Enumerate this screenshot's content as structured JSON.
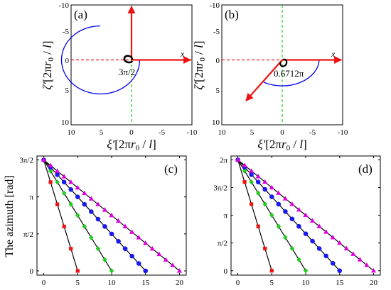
{
  "colors": {
    "red": "#ee1111",
    "green": "#22cc22",
    "blue": "#1a1aee",
    "magenta": "#dd00dd",
    "black": "#000000",
    "arc_blue": "#0000ee"
  },
  "chart_data": [
    {
      "type": "diagram",
      "panel": "(a)",
      "xlim": [
        10,
        -10
      ],
      "ylim": [
        -10,
        10
      ],
      "xticks": [
        "10",
        "5",
        "0",
        "-5",
        "-10"
      ],
      "yticks": [
        "-10",
        "-5",
        "0",
        "5",
        "10"
      ],
      "xlabel": "ξ′[2πr0/l]",
      "ylabel": "ζ′[2πr0/l]",
      "x_axis_label": "x",
      "angle_label": "3π/2",
      "arrows": [
        {
          "name": "x-axis-arrow",
          "color": "red",
          "from": [
            0,
            0
          ],
          "to": [
            -9,
            0
          ]
        },
        {
          "name": "up-arrow",
          "color": "red",
          "from": [
            0,
            0
          ],
          "to": [
            0,
            -10
          ]
        }
      ],
      "arc": {
        "start_angle_deg": 0,
        "sweep": "270 degrees",
        "center": [
          0,
          0
        ]
      }
    },
    {
      "type": "diagram",
      "panel": "(b)",
      "xlim": [
        10,
        -10
      ],
      "ylim": [
        -10,
        10
      ],
      "xticks": [
        "10",
        "5",
        "0",
        "-5",
        "-10"
      ],
      "yticks": [
        "-10",
        "-5",
        "0",
        "5",
        "10"
      ],
      "xlabel": "ξ′[2πr0/l]",
      "ylabel": "ζ′[2πr0/l]",
      "x_axis_label": "x",
      "angle_label": "0.6712π",
      "arrows": [
        {
          "name": "x-axis-arrow",
          "color": "red",
          "from": [
            0,
            0
          ],
          "to": [
            -9,
            0
          ]
        },
        {
          "name": "diagonal-arrow",
          "color": "red",
          "from": [
            0,
            0
          ],
          "to": [
            5.2,
            6.8
          ]
        }
      ],
      "arc": {
        "start_angle_deg": 0,
        "sweep": "0.6712π",
        "center": [
          0,
          0
        ]
      }
    },
    {
      "type": "scatter",
      "panel": "(c)",
      "ylabel": "The azimuth [rad]",
      "xlim": [
        -1,
        21
      ],
      "ylim": [
        -0.18,
        4.88
      ],
      "xticks": [
        0,
        5,
        10,
        15,
        20
      ],
      "yticks": [
        {
          "value": 0,
          "label": "0"
        },
        {
          "value": 1.5708,
          "label": "π/2"
        },
        {
          "value": 3.1416,
          "label": "π"
        },
        {
          "value": 4.7124,
          "label": "3π/2"
        }
      ],
      "series": [
        {
          "color": "red",
          "marker": "square",
          "x": [
            0,
            1,
            2,
            3,
            4,
            5
          ],
          "y": [
            4.712,
            3.77,
            2.827,
            1.885,
            0.942,
            0
          ]
        },
        {
          "color": "green",
          "marker": "diamond",
          "x": [
            0,
            1,
            2,
            3,
            4,
            5,
            6,
            7,
            8,
            9,
            10
          ],
          "y": [
            4.712,
            4.241,
            3.77,
            3.299,
            2.827,
            2.356,
            1.885,
            1.414,
            0.942,
            0.471,
            0
          ]
        },
        {
          "color": "blue",
          "marker": "circle",
          "x": [
            0,
            1,
            2,
            3,
            4,
            5,
            6,
            7,
            8,
            9,
            10,
            11,
            12,
            13,
            14,
            15
          ],
          "y": [
            4.712,
            4.398,
            4.084,
            3.77,
            3.456,
            3.142,
            2.827,
            2.513,
            2.199,
            1.885,
            1.571,
            1.257,
            0.942,
            0.628,
            0.314,
            0
          ]
        },
        {
          "color": "magenta",
          "marker": "triangle",
          "x": [
            0,
            1,
            2,
            3,
            4,
            5,
            6,
            7,
            8,
            9,
            10,
            11,
            12,
            13,
            14,
            15,
            16,
            17,
            18,
            19,
            20
          ],
          "y": [
            4.712,
            4.477,
            4.241,
            4.006,
            3.77,
            3.534,
            3.299,
            3.063,
            2.827,
            2.592,
            2.356,
            2.121,
            1.885,
            1.649,
            1.414,
            1.178,
            0.942,
            0.707,
            0.471,
            0.236,
            0
          ]
        }
      ],
      "fit_lines": [
        {
          "x": [
            0,
            5
          ],
          "y": [
            4.712,
            0
          ]
        },
        {
          "x": [
            0,
            10
          ],
          "y": [
            4.712,
            0
          ]
        },
        {
          "x": [
            0,
            15
          ],
          "y": [
            4.712,
            0
          ]
        },
        {
          "x": [
            0,
            20
          ],
          "y": [
            4.712,
            0
          ]
        }
      ]
    },
    {
      "type": "scatter",
      "panel": "(d)",
      "xlim": [
        -1,
        21
      ],
      "ylim": [
        -0.25,
        6.5
      ],
      "xticks": [
        0,
        5,
        10,
        15,
        20
      ],
      "yticks": [
        {
          "value": 0,
          "label": "0"
        },
        {
          "value": 1.5708,
          "label": "π/2"
        },
        {
          "value": 3.1416,
          "label": "π"
        },
        {
          "value": 4.7124,
          "label": "3π/2"
        },
        {
          "value": 6.2832,
          "label": "2π"
        }
      ],
      "series": [
        {
          "color": "red",
          "marker": "square",
          "x": [
            0,
            1,
            2,
            3,
            4,
            5
          ],
          "y": [
            6.283,
            5.027,
            3.77,
            2.513,
            1.257,
            0
          ]
        },
        {
          "color": "green",
          "marker": "diamond",
          "x": [
            0,
            1,
            2,
            3,
            4,
            5,
            6,
            7,
            8,
            9,
            10
          ],
          "y": [
            6.283,
            5.655,
            5.027,
            4.398,
            3.77,
            3.142,
            2.513,
            1.885,
            1.257,
            0.628,
            0
          ]
        },
        {
          "color": "blue",
          "marker": "circle",
          "x": [
            0,
            1,
            2,
            3,
            4,
            5,
            6,
            7,
            8,
            9,
            10,
            11,
            12,
            13,
            14,
            15
          ],
          "y": [
            6.283,
            5.864,
            5.445,
            5.027,
            4.608,
            4.189,
            3.77,
            3.351,
            2.932,
            2.513,
            2.094,
            1.676,
            1.257,
            0.838,
            0.419,
            0
          ]
        },
        {
          "color": "magenta",
          "marker": "triangle",
          "x": [
            0,
            1,
            2,
            3,
            4,
            5,
            6,
            7,
            8,
            9,
            10,
            11,
            12,
            13,
            14,
            15,
            16,
            17,
            18,
            19,
            20
          ],
          "y": [
            6.283,
            5.969,
            5.655,
            5.341,
            5.027,
            4.712,
            4.398,
            4.084,
            3.77,
            3.456,
            3.142,
            2.827,
            2.513,
            2.199,
            1.885,
            1.571,
            1.257,
            0.942,
            0.628,
            0.314,
            0
          ]
        }
      ],
      "fit_lines": [
        {
          "x": [
            0,
            5
          ],
          "y": [
            6.283,
            0
          ]
        },
        {
          "x": [
            0,
            10
          ],
          "y": [
            6.283,
            0
          ]
        },
        {
          "x": [
            0,
            15
          ],
          "y": [
            6.283,
            0
          ]
        },
        {
          "x": [
            0,
            20
          ],
          "y": [
            6.283,
            0
          ]
        }
      ]
    }
  ]
}
